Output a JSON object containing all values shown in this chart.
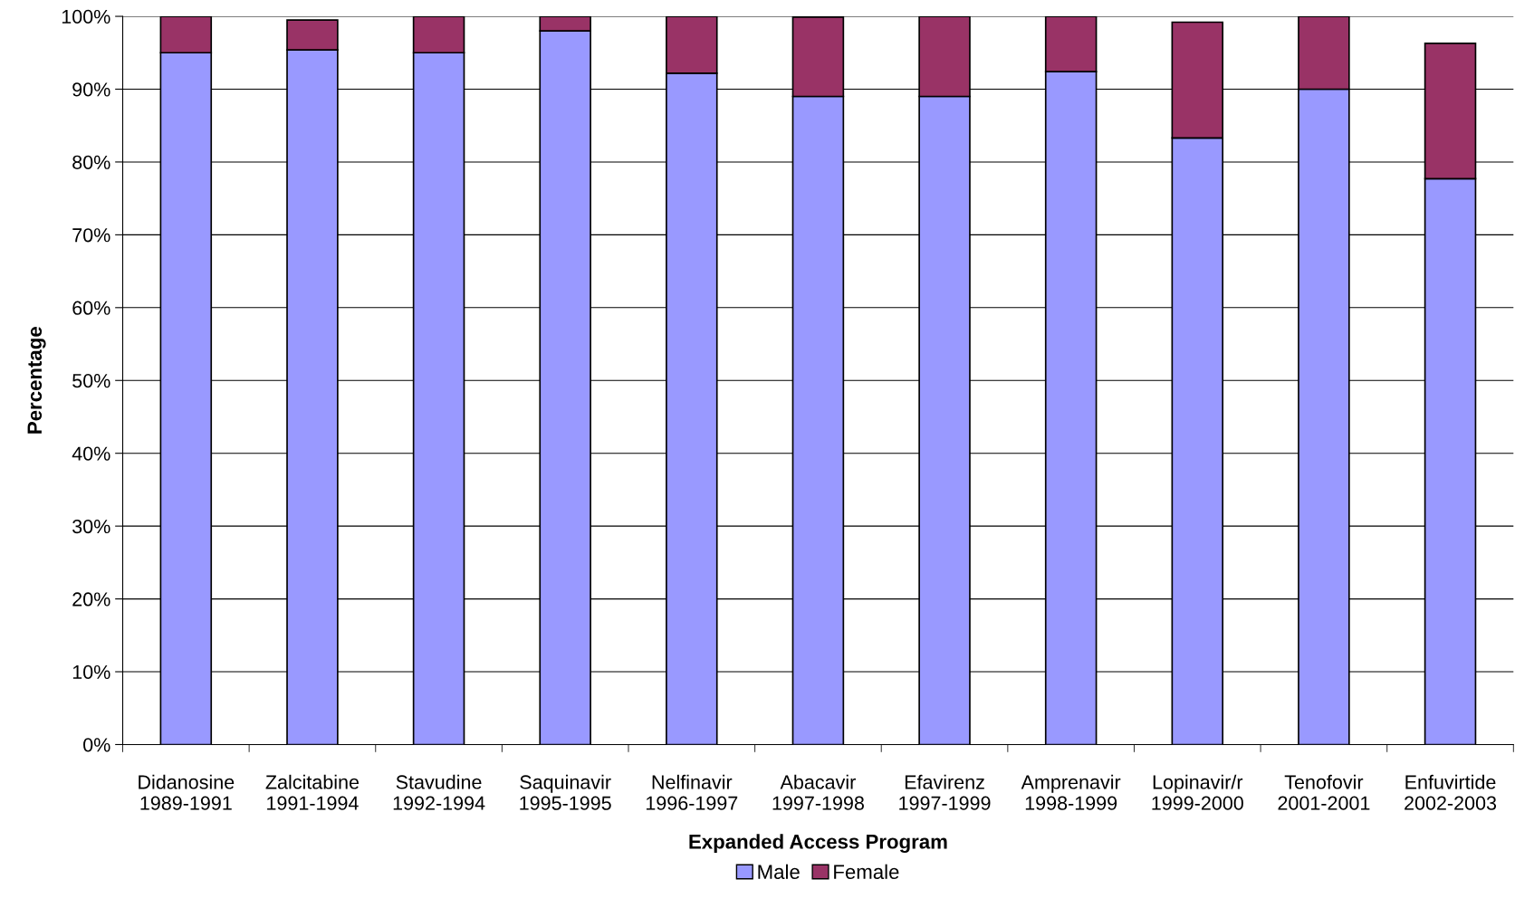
{
  "chart_data": {
    "type": "bar",
    "stacked": true,
    "xlabel": "Expanded Access Program",
    "ylabel": "Percentage",
    "categories": [
      "Didanosine\n1989-1991",
      "Zalcitabine\n1991-1994",
      "Stavudine\n1992-1994",
      "Saquinavir\n1995-1995",
      "Nelfinavir\n1996-1997",
      "Abacavir\n1997-1998",
      "Efavirenz\n1997-1999",
      "Amprenavir\n1998-1999",
      "Lopinavir/r\n1999-2000",
      "Tenofovir\n2001-2001",
      "Enfuvirtide\n2002-2003"
    ],
    "series": [
      {
        "name": "Male",
        "color": "#9999ff",
        "values": [
          95,
          95.4,
          95,
          98,
          92.2,
          89,
          89,
          92.4,
          83.3,
          90,
          77.7
        ]
      },
      {
        "name": "Female",
        "color": "#993366",
        "values": [
          5,
          4.1,
          5,
          2,
          7.8,
          10.9,
          11,
          7.6,
          15.9,
          10,
          18.6
        ]
      }
    ],
    "ylim": [
      0,
      100
    ],
    "yticks": [
      {
        "value": 0,
        "label": "0%"
      },
      {
        "value": 10,
        "label": "10%"
      },
      {
        "value": 20,
        "label": "20%"
      },
      {
        "value": 30,
        "label": "30%"
      },
      {
        "value": 40,
        "label": "40%"
      },
      {
        "value": 50,
        "label": "50%"
      },
      {
        "value": 60,
        "label": "60%"
      },
      {
        "value": 70,
        "label": "70%"
      },
      {
        "value": 80,
        "label": "80%"
      },
      {
        "value": 90,
        "label": "90%"
      },
      {
        "value": 100,
        "label": "100%"
      }
    ],
    "grid": "y",
    "legend": "bottom"
  }
}
